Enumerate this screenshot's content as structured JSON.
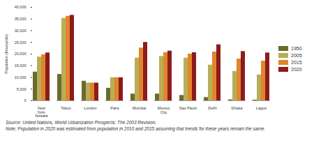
{
  "chart_data": {
    "type": "bar",
    "ylabel": "Population (thousands)",
    "categories": [
      "New York-Newark",
      "Tokyo",
      "London",
      "Paris",
      "Mumbai",
      "Mexico City",
      "Sao Paulo",
      "Delhi",
      "Dhaka",
      "Lagos"
    ],
    "series": [
      {
        "name": "1950",
        "color": "#6e6a2e",
        "values": [
          12300,
          11300,
          8400,
          5400,
          2900,
          2900,
          2300,
          1400,
          400,
          300
        ]
      },
      {
        "name": "2005",
        "color": "#b7ae5a",
        "values": [
          18700,
          35300,
          7600,
          9900,
          18300,
          19000,
          18300,
          15300,
          12600,
          11100
        ]
      },
      {
        "name": "2015",
        "color": "#e0862a",
        "values": [
          19700,
          36200,
          7600,
          9900,
          22600,
          20600,
          20000,
          20900,
          17900,
          17000
        ]
      },
      {
        "name": "2020",
        "color": "#8c1c1c",
        "values": [
          20500,
          36600,
          7600,
          9900,
          25000,
          21300,
          20600,
          24000,
          21100,
          20500
        ]
      }
    ],
    "ylim": [
      0,
      40000
    ],
    "yticks": [
      0,
      {
        "value": 5000,
        "label": "5,000"
      },
      {
        "value": 10000,
        "label": "10,000"
      },
      {
        "value": 15000,
        "label": "15,000"
      },
      {
        "value": 20000,
        "label": "20,000"
      },
      {
        "value": 25000,
        "label": "25,000"
      },
      {
        "value": 30000,
        "label": "30,000"
      },
      {
        "value": 35000,
        "label": "35,000"
      },
      {
        "value": 40000,
        "label": "40,000"
      }
    ],
    "legend": "right",
    "source": "Source: United Nations, World Urbanization Prospects: The 2003 Revision.",
    "note": "Note: Population in 2020 was estimated from population in 2010 and 2015 assuming that trends for these years remain the same."
  }
}
